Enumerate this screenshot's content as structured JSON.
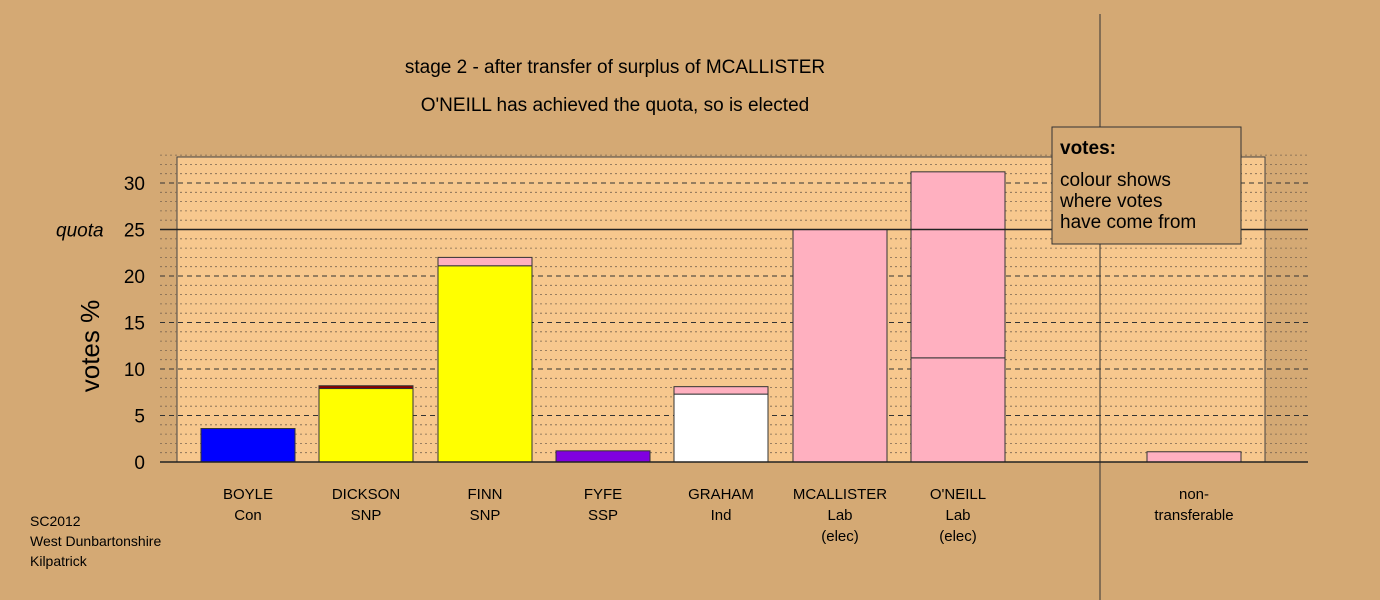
{
  "chart_data": {
    "type": "bar",
    "stacked": true,
    "title": "stage 2 - after transfer of surplus of MCALLISTER",
    "subtitle": "O'NEILL has achieved the quota, so is elected",
    "ylabel": "votes %",
    "ylim": [
      0,
      33
    ],
    "yticks": [
      0,
      5,
      10,
      15,
      20,
      25,
      30
    ],
    "quota": 25,
    "quota_label": "quota",
    "grid": true,
    "categories": [
      {
        "lines": [
          "BOYLE",
          "Con"
        ],
        "segments": [
          {
            "value": 3.6,
            "color": "#0000ff"
          }
        ]
      },
      {
        "lines": [
          "DICKSON",
          "SNP"
        ],
        "segments": [
          {
            "value": 7.9,
            "color": "#ffff00"
          },
          {
            "value": 0.3,
            "color": "#8b0000"
          }
        ]
      },
      {
        "lines": [
          "FINN",
          "SNP"
        ],
        "segments": [
          {
            "value": 21.1,
            "color": "#ffff00"
          },
          {
            "value": 0.9,
            "color": "#ffb0c0"
          }
        ]
      },
      {
        "lines": [
          "FYFE",
          "SSP"
        ],
        "segments": [
          {
            "value": 1.2,
            "color": "#8000e0"
          }
        ]
      },
      {
        "lines": [
          "GRAHAM",
          "Ind"
        ],
        "segments": [
          {
            "value": 7.3,
            "color": "#ffffff"
          },
          {
            "value": 0.8,
            "color": "#ffb0c0"
          }
        ]
      },
      {
        "lines": [
          "MCALLISTER",
          "Lab",
          "(elec)"
        ],
        "segments": [
          {
            "value": 25.0,
            "color": "#ffb0c0"
          }
        ]
      },
      {
        "lines": [
          "O'NEILL",
          "Lab",
          "(elec)"
        ],
        "segments": [
          {
            "value": 11.2,
            "color": "#ffb0c0"
          },
          {
            "value": 20.0,
            "color": "#ffb0c0"
          }
        ]
      },
      {
        "lines": [
          "non-",
          "transferable"
        ],
        "segments": [
          {
            "value": 1.1,
            "color": "#ffb0c0"
          }
        ]
      }
    ],
    "legend": {
      "title": "votes:",
      "lines": [
        "colour shows",
        "where votes",
        "have come from"
      ],
      "placement": "top-right"
    },
    "source_lines": [
      "SC2012",
      "West Dunbartonshire",
      "Kilpatrick"
    ]
  }
}
